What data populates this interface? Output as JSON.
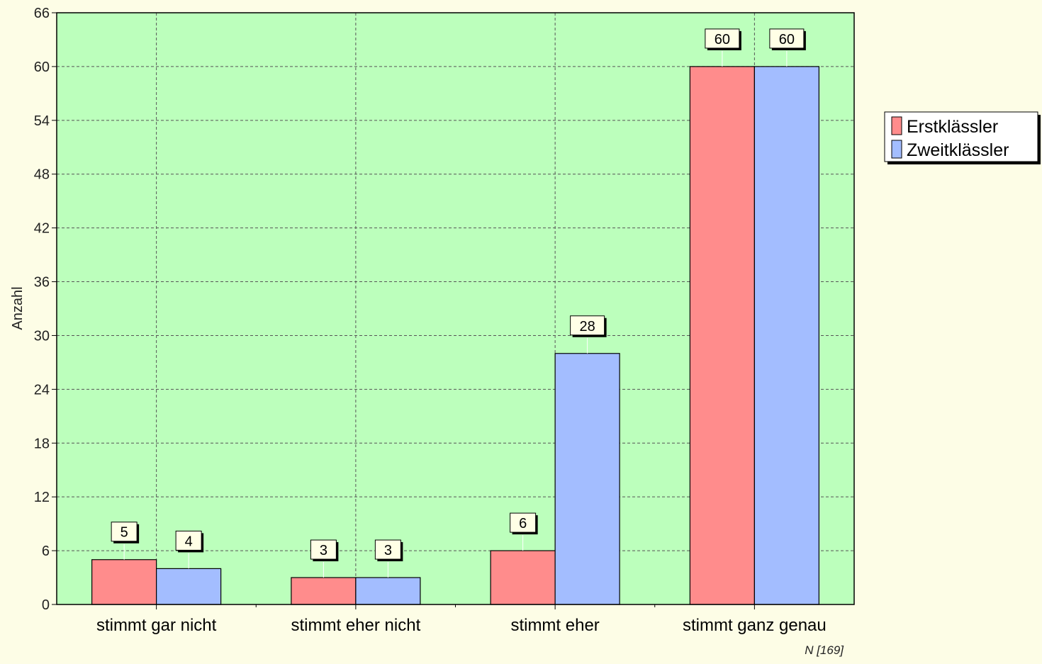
{
  "chart_data": {
    "type": "bar",
    "title": "",
    "xlabel": "",
    "ylabel": "Anzahl",
    "categories": [
      "stimmt gar nicht",
      "stimmt eher nicht",
      "stimmt eher",
      "stimmt ganz genau"
    ],
    "series": [
      {
        "name": "Erstklässler",
        "values": [
          5,
          3,
          6,
          60
        ],
        "color": "#ff8c8c"
      },
      {
        "name": "Zweitklässler",
        "values": [
          4,
          3,
          28,
          60
        ],
        "color": "#a3bdff"
      }
    ],
    "ylim": [
      0,
      66
    ],
    "yticks": [
      0,
      6,
      12,
      18,
      24,
      30,
      36,
      42,
      48,
      54,
      60,
      66
    ],
    "grid": true,
    "legend_position": "right",
    "plot_background": "#bcffbc",
    "page_background": "#fdfde6",
    "note": "N [169]"
  }
}
